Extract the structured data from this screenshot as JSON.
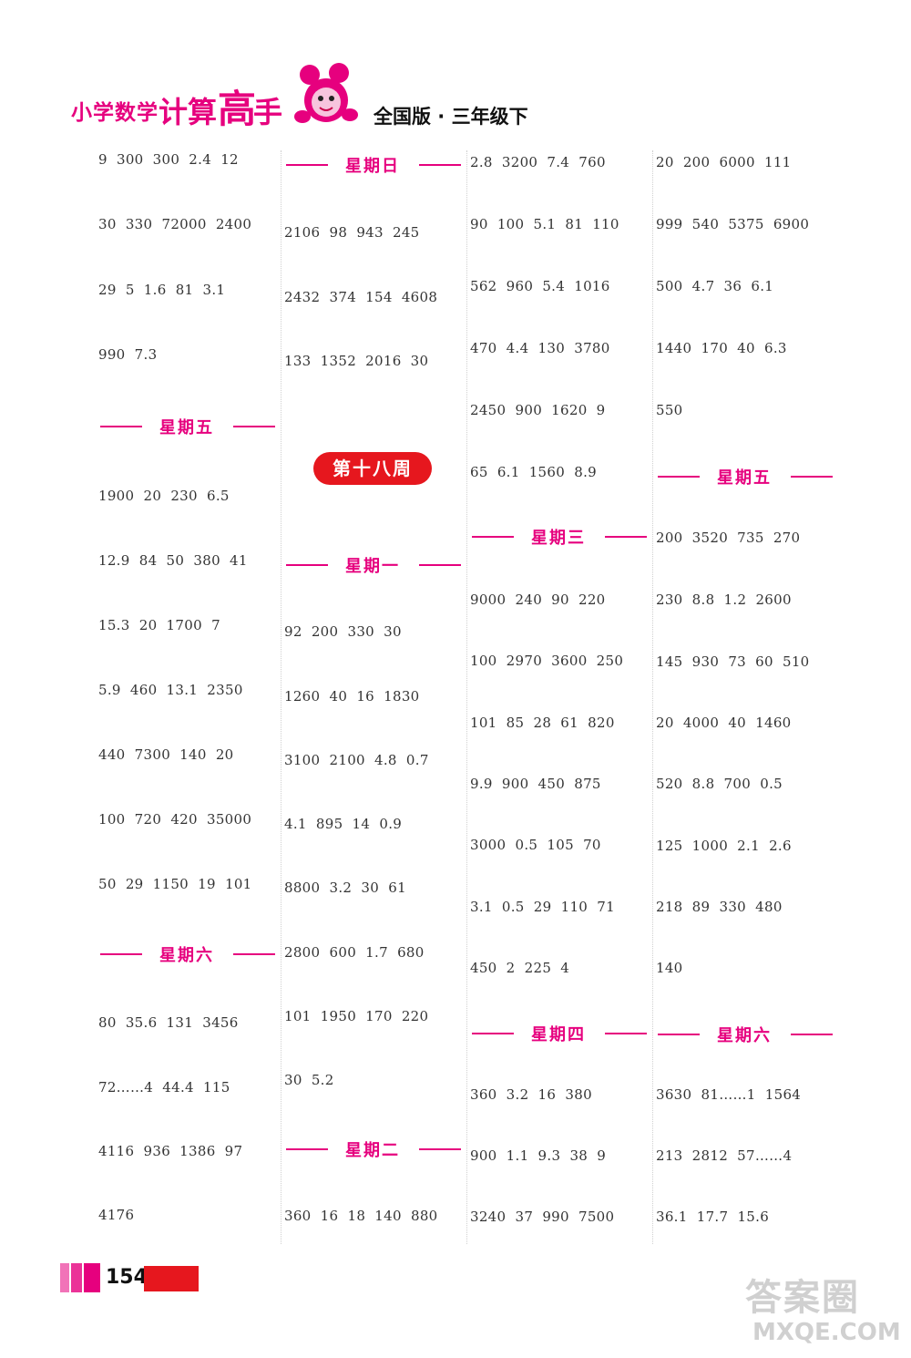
{
  "header": {
    "brand_small": "小学数学",
    "brand_ji_suan": "计算",
    "brand_gao": "高",
    "brand_shou": "手",
    "edition": "全国版 · 三年级下"
  },
  "col1": {
    "rows_a": [
      "9  300  300  2.4  12",
      "30  330  72000  2400",
      "29  5  1.6  81  3.1",
      "990  7.3"
    ],
    "day_fri": "星期五",
    "rows_b": [
      "1900  20  230  6.5",
      "12.9  84  50  380  41",
      "15.3  20  1700  7",
      "5.9  460  13.1  2350",
      "440  7300  140  20",
      "100  720  420  35000",
      "50  29  1150  19  101"
    ],
    "day_sat": "星期六",
    "rows_c": [
      "80  35.6  131  3456",
      "72……4  44.4  115",
      "4116  936  1386  97",
      "4176"
    ]
  },
  "col2": {
    "day_sun": "星期日",
    "rows_a": [
      "2106  98  943  245",
      "2432  374  154  4608",
      "133  1352  2016  30"
    ],
    "week": "第十八周",
    "day_mon": "星期一",
    "rows_b": [
      "92  200  330  30",
      "1260  40  16  1830",
      "3100  2100  4.8  0.7",
      "4.1  895  14  0.9",
      "8800  3.2  30  61",
      "2800  600  1.7  680",
      "101  1950  170  220",
      "30  5.2"
    ],
    "day_tue": "星期二",
    "rows_c": [
      "360  16  18  140  880"
    ]
  },
  "col3": {
    "rows_a": [
      "2.8  3200  7.4  760",
      "90  100  5.1  81  110",
      "562  960  5.4  1016",
      "470  4.4  130  3780",
      "2450  900  1620  9",
      "65  6.1  1560  8.9"
    ],
    "day_wed": "星期三",
    "rows_b": [
      "9000  240  90  220",
      "100  2970  3600  250",
      "101  85  28  61  820",
      "9.9  900  450  875",
      "3000  0.5  105  70",
      "3.1  0.5  29  110  71",
      "450  2  225  4"
    ],
    "day_thu": "星期四",
    "rows_c": [
      "360  3.2  16  380",
      "900  1.1  9.3  38  9",
      "3240  37  990  7500"
    ]
  },
  "col4": {
    "rows_a": [
      "20  200  6000  111",
      "999  540  5375  6900",
      "500  4.7  36  6.1",
      "1440  170  40  6.3",
      "550"
    ],
    "day_fri": "星期五",
    "rows_b": [
      "200  3520  735  270",
      "230  8.8  1.2  2600",
      "145  930  73  60  510",
      "20  4000  40  1460",
      "520  8.8  700  0.5",
      "125  1000  2.1  2.6",
      "218  89  330  480",
      "140"
    ],
    "day_sat": "星期六",
    "rows_c": [
      "3630  81……1  1564",
      "213  2812  57……4",
      "36.1  17.7  15.6"
    ]
  },
  "footer": {
    "page_number": "154"
  },
  "watermark": {
    "main": "答案圈",
    "url": "MXQE.COM"
  },
  "colors": {
    "accent": "#e6007e",
    "week_badge": "#e6171e"
  }
}
